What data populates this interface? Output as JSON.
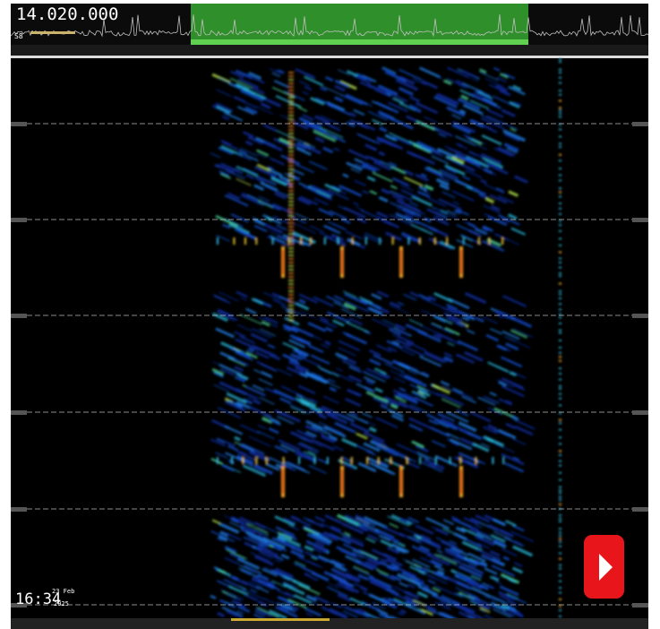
{
  "header": {
    "frequency": "14.020.000",
    "s_meter": "S8"
  },
  "clock": {
    "time": "16:34",
    "date": "23 Feb",
    "year": "2025"
  }
}
